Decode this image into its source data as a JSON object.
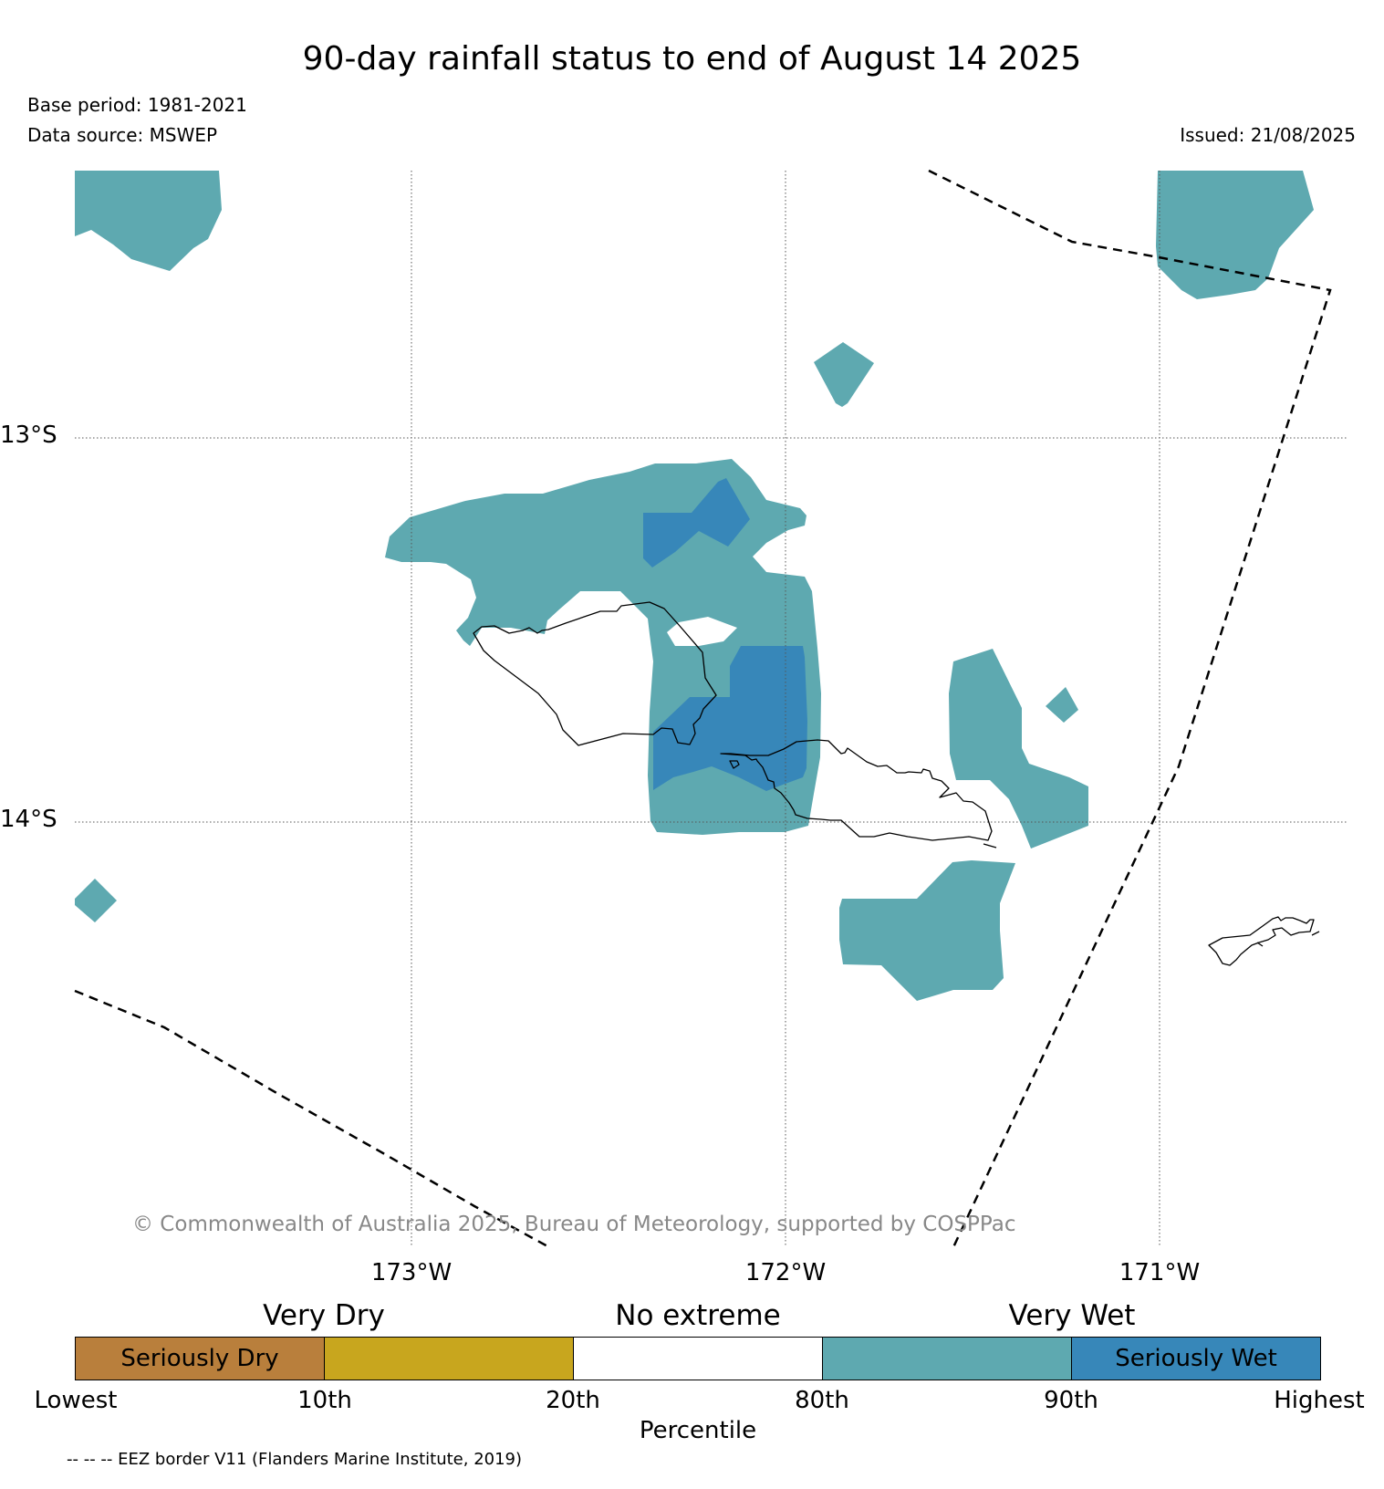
{
  "title": "90-day rainfall status to end of August 14 2025",
  "base_period": "Base period: 1981-2021",
  "data_source": "Data source: MSWEP",
  "issued": "Issued: 21/08/2025",
  "copyright": "© Commonwealth of Australia 2025, Bureau of Meteorology, supported by COSPPac",
  "map": {
    "lon_labels": [
      "173°W",
      "172°W",
      "171°W"
    ],
    "lat_labels": [
      "13°S",
      "14°S"
    ],
    "grid_lines": "dotted",
    "eez_border_style": "dashed",
    "coastline_color": "#000000"
  },
  "legend": {
    "categories": [
      "Very Dry",
      "No extreme",
      "Very Wet"
    ],
    "segments": [
      {
        "label": "Seriously Dry",
        "color": "#b97f3c"
      },
      {
        "label": "",
        "color": "#c8a61e"
      },
      {
        "label": "",
        "color": "#ffffff"
      },
      {
        "label": "",
        "color": "#5ea9b0"
      },
      {
        "label": "Seriously Wet",
        "color": "#3787b9"
      }
    ],
    "ticks": [
      "Lowest",
      "10th",
      "20th",
      "80th",
      "90th",
      "Highest"
    ],
    "axis_label": "Percentile"
  },
  "eez_note": "-- -- -- EEZ border V11 (Flanders Marine Institute, 2019)"
}
